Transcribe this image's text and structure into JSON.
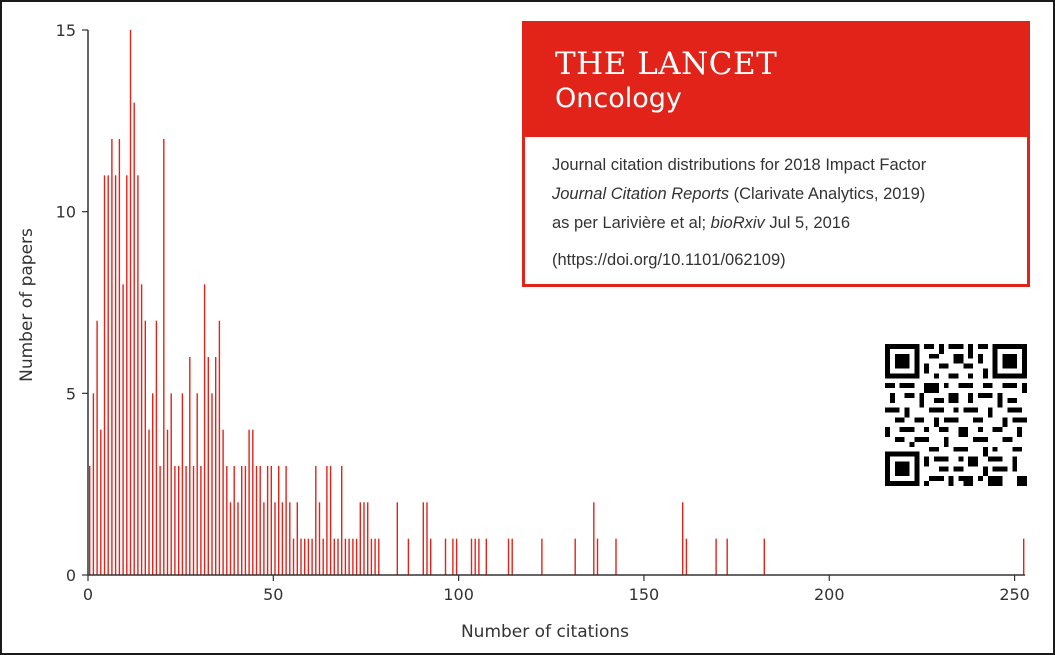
{
  "chart_data": {
    "type": "bar",
    "xlabel": "Number of citations",
    "ylabel": "Number of papers",
    "xlim": [
      0,
      252
    ],
    "ylim": [
      0,
      15
    ],
    "xticks": [
      "0",
      "50",
      "100",
      "150",
      "200",
      "250"
    ],
    "yticks": [
      "0",
      "5",
      "10",
      "15"
    ],
    "color": "#e2231a",
    "x": [
      0,
      1,
      2,
      3,
      4,
      5,
      6,
      7,
      8,
      9,
      10,
      11,
      12,
      13,
      14,
      15,
      16,
      17,
      18,
      19,
      20,
      21,
      22,
      23,
      24,
      25,
      26,
      27,
      28,
      29,
      30,
      31,
      32,
      33,
      34,
      35,
      36,
      37,
      38,
      39,
      40,
      41,
      42,
      43,
      44,
      45,
      46,
      47,
      48,
      49,
      50,
      51,
      52,
      53,
      54,
      55,
      56,
      57,
      58,
      59,
      60,
      61,
      62,
      63,
      64,
      65,
      66,
      67,
      68,
      69,
      70,
      71,
      72,
      73,
      74,
      75,
      76,
      77,
      78,
      83,
      86,
      90,
      91,
      92,
      96,
      98,
      99,
      103,
      104,
      105,
      107,
      113,
      114,
      122,
      131,
      136,
      137,
      142,
      160,
      161,
      169,
      172,
      182,
      252
    ],
    "values": [
      3,
      5,
      7,
      4,
      11,
      11,
      12,
      11,
      12,
      8,
      11,
      15,
      13,
      11,
      8,
      7,
      4,
      5,
      7,
      3,
      12,
      4,
      5,
      3,
      3,
      5,
      3,
      6,
      3,
      5,
      3,
      8,
      6,
      5,
      6,
      7,
      4,
      3,
      2,
      3,
      2,
      3,
      3,
      4,
      4,
      3,
      3,
      2,
      3,
      3,
      2,
      3,
      2,
      3,
      2,
      1,
      2,
      1,
      1,
      1,
      1,
      3,
      2,
      1,
      3,
      3,
      1,
      1,
      3,
      1,
      1,
      1,
      1,
      2,
      2,
      2,
      1,
      1,
      1,
      2,
      1,
      2,
      2,
      1,
      1,
      1,
      1,
      1,
      1,
      1,
      1,
      1,
      1,
      1,
      1,
      2,
      1,
      1,
      2,
      1,
      1,
      1,
      1,
      1
    ]
  },
  "brand": {
    "title": "THE LANCET",
    "subtitle": "Oncology"
  },
  "caption": {
    "line1": "Journal citation distributions for 2018 Impact Factor",
    "line2_italic": "Journal Citation Reports",
    "line2_rest": " (Clarivate Analytics, 2019)",
    "line3_start": "as per Larivière et al; ",
    "line3_italic": "bioRxiv",
    "line3_rest": " Jul 5, 2016",
    "doi": "(https://doi.org/10.1101/062109)"
  },
  "qr": {
    "icon": "qr-code-icon"
  }
}
